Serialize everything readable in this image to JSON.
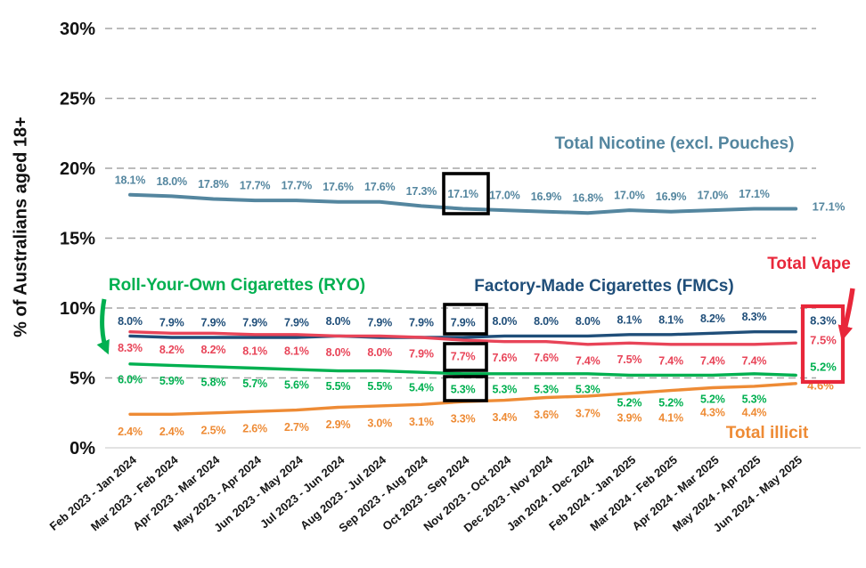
{
  "chart_data": {
    "type": "line",
    "title": "",
    "xlabel": "",
    "ylabel": "% of Australians aged 18+",
    "ylim": [
      0,
      32
    ],
    "yticks": [
      0,
      5,
      10,
      15,
      20,
      25,
      30
    ],
    "ytick_suffix": "%",
    "grid": "horizontal-dashed",
    "legend_position": "inline-labels",
    "categories": [
      "Feb 2023 - Jan 2024",
      "Mar 2023 - Feb 2024",
      "Apr 2023 - Mar 2024",
      "May 2023 - Apr 2024",
      "Jun 2023 - May 2024",
      "Jul 2023 - Jun 2024",
      "Aug 2023 - Jul 2024",
      "Sep 2023 - Aug 2024",
      "Oct 2023 - Sep 2024",
      "Nov 2023 - Oct 2024",
      "Dec 2023 - Nov 2024",
      "Jan 2024 - Dec 2024",
      "Feb 2024 - Jan 2025",
      "Mar 2024 - Feb 2025",
      "Apr 2024 - Mar 2025",
      "May 2024 - Apr 2025",
      "Jun 2024 - May 2025"
    ],
    "series": [
      {
        "name": "Total Nicotine (excl. Pouches)",
        "color": "#54869f",
        "values": [
          18.1,
          18.0,
          17.8,
          17.7,
          17.7,
          17.6,
          17.6,
          17.3,
          17.1,
          17.0,
          16.9,
          16.8,
          17.0,
          16.9,
          17.0,
          17.1,
          17.1
        ]
      },
      {
        "name": "Factory-Made Cigarettes (FMCs)",
        "color": "#1f4e79",
        "values": [
          8.0,
          7.9,
          7.9,
          7.9,
          7.9,
          8.0,
          7.9,
          7.9,
          7.9,
          8.0,
          8.0,
          8.0,
          8.1,
          8.1,
          8.2,
          8.3,
          8.3
        ]
      },
      {
        "name": "Total Vape",
        "color": "#e84458",
        "values": [
          8.3,
          8.2,
          8.2,
          8.1,
          8.1,
          8.0,
          8.0,
          7.9,
          7.7,
          7.6,
          7.6,
          7.4,
          7.5,
          7.4,
          7.4,
          7.4,
          7.5
        ]
      },
      {
        "name": "Roll-Your-Own Cigarettes (RYO)",
        "color": "#00b050",
        "values": [
          6.0,
          5.9,
          5.8,
          5.7,
          5.6,
          5.5,
          5.5,
          5.4,
          5.3,
          5.3,
          5.3,
          5.3,
          5.2,
          5.2,
          5.2,
          5.3,
          5.2
        ]
      },
      {
        "name": "Total illicit",
        "color": "#ee8b35",
        "values": [
          2.4,
          2.4,
          2.5,
          2.6,
          2.7,
          2.9,
          3.0,
          3.1,
          3.3,
          3.4,
          3.6,
          3.7,
          3.9,
          4.1,
          4.3,
          4.4,
          4.6
        ]
      }
    ],
    "annotations": {
      "highlighted_period": "Oct 2023 - Sep 2024",
      "highlighted_period_values": {
        "total_nicotine": "17.1%",
        "fmc": "7.9%",
        "vape": "7.7%",
        "ryo": "5.3%"
      },
      "final_period": "Jun 2024 - May 2025",
      "final_period_boxed_values": {
        "fmc": "8.3%",
        "vape": "7.5%",
        "ryo": "5.2%"
      },
      "final_period_other_values": {
        "total_nicotine": "17.1%",
        "illicit": "4.6%"
      },
      "black_box_color": "#000000",
      "red_box_color": "#e8273a",
      "vape_callout_color": "#e8273a",
      "gridline_color": "#a6a6a6",
      "axis_line_color": "#d9d9d9"
    }
  }
}
